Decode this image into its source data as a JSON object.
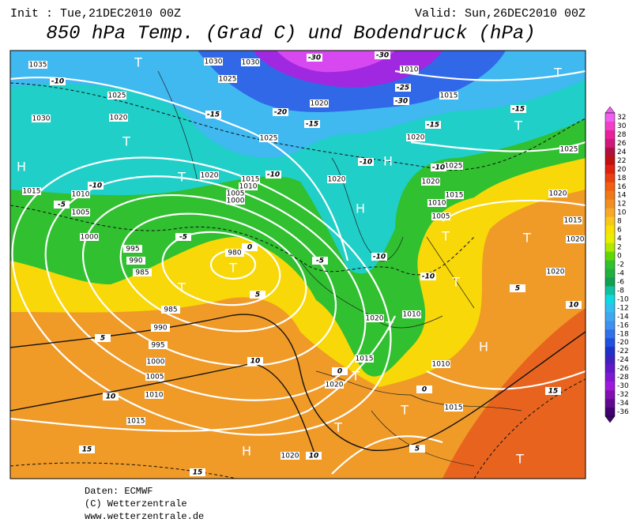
{
  "header": {
    "init": "Init : Tue,21DEC2010 00Z",
    "valid": "Valid: Sun,26DEC2010 00Z",
    "title": "850 hPa Temp. (Grad C) und Bodendruck (hPa)"
  },
  "map": {
    "pressure_labels": [
      1035,
      1030,
      1025,
      1020,
      1015,
      1010,
      1005,
      1000,
      995,
      990,
      985,
      980,
      985,
      990,
      995,
      1000,
      1005,
      1010,
      1015,
      1020,
      1020,
      1010,
      1015,
      1020,
      1015,
      1010,
      1005,
      1010,
      1015,
      1020,
      1025,
      1020,
      1015,
      1010,
      1020,
      1025,
      1020,
      1015,
      1020,
      1020,
      1025,
      1030,
      1015,
      1010,
      1005,
      1000,
      1020,
      1020,
      1025,
      1030
    ],
    "temperature_labels": [
      -10,
      -10,
      -5,
      -5,
      0,
      5,
      5,
      10,
      10,
      15,
      15,
      -5,
      -10,
      -10,
      -15,
      -20,
      -15,
      -30,
      -30,
      -25,
      -30,
      -15,
      -15,
      -10,
      -10,
      -10,
      5,
      10,
      15,
      10,
      5,
      0,
      0
    ],
    "centers": [
      "H",
      "T",
      "T",
      "T",
      "T",
      "T",
      "H",
      "T",
      "T",
      "T",
      "H",
      "H",
      "T",
      "T",
      "T",
      "H",
      "T",
      "T",
      "T",
      "T"
    ]
  },
  "colorbar": {
    "levels": [
      32,
      30,
      28,
      26,
      24,
      22,
      20,
      18,
      16,
      14,
      12,
      10,
      8,
      6,
      4,
      2,
      0,
      -2,
      -4,
      -6,
      -8,
      -10,
      -12,
      -14,
      -16,
      -18,
      -20,
      -22,
      -24,
      -26,
      -28,
      -30,
      -32,
      -34,
      -36
    ],
    "colors": [
      "#f060f0",
      "#f040c8",
      "#e8209c",
      "#d01878",
      "#b01040",
      "#c01010",
      "#e02010",
      "#e84010",
      "#f06010",
      "#f07818",
      "#f09020",
      "#f8a828",
      "#f8c818",
      "#f8e000",
      "#e8f000",
      "#b0e800",
      "#60d800",
      "#30c030",
      "#20b040",
      "#10a050",
      "#10c0a0",
      "#10d8e0",
      "#30c0f0",
      "#40a8f0",
      "#4090f0",
      "#3070e8",
      "#2050e0",
      "#2030c8",
      "#4020c0",
      "#6018c8",
      "#8018d0",
      "#a018e0",
      "#8010b0",
      "#600890",
      "#400070"
    ]
  },
  "footer": {
    "lines": [
      "Daten: ECMWF",
      "(C) Wetterzentrale",
      "www.wetterzentrale.de"
    ]
  }
}
